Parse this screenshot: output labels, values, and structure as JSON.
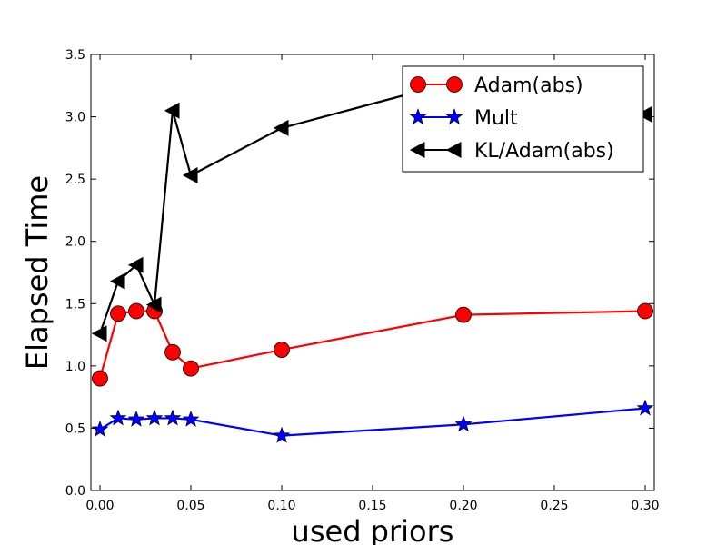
{
  "chart_data": {
    "type": "line",
    "xlabel": "used priors",
    "ylabel": "Elapsed Time",
    "xlim": [
      -0.005,
      0.305
    ],
    "ylim": [
      0,
      3.5
    ],
    "xticks": [
      "0.00",
      "0.05",
      "0.10",
      "0.15",
      "0.20",
      "0.25",
      "0.30"
    ],
    "yticks": [
      "0.0",
      "0.5",
      "1.0",
      "1.5",
      "2.0",
      "2.5",
      "3.0",
      "3.5"
    ],
    "grid": false,
    "legend_position": "top-right",
    "series": [
      {
        "name": "Adam(abs)",
        "color": "#ff0000",
        "marker": "circle",
        "x": [
          0.0,
          0.01,
          0.02,
          0.03,
          0.04,
          0.05,
          0.1,
          0.2,
          0.3
        ],
        "y": [
          0.9,
          1.42,
          1.44,
          1.44,
          1.11,
          0.98,
          1.13,
          1.41,
          1.44
        ]
      },
      {
        "name": "Mult",
        "color": "#0000ff",
        "marker": "star",
        "x": [
          0.0,
          0.01,
          0.02,
          0.03,
          0.04,
          0.05,
          0.1,
          0.2,
          0.3
        ],
        "y": [
          0.49,
          0.58,
          0.57,
          0.58,
          0.58,
          0.57,
          0.44,
          0.53,
          0.66
        ]
      },
      {
        "name": "KL/Adam(abs)",
        "color": "#000000",
        "marker": "triangle-left",
        "x": [
          0.0,
          0.01,
          0.02,
          0.03,
          0.04,
          0.05,
          0.1,
          0.2,
          0.3
        ],
        "y": [
          1.26,
          1.68,
          1.81,
          1.49,
          3.05,
          2.53,
          2.91,
          3.3,
          3.02
        ]
      }
    ]
  }
}
